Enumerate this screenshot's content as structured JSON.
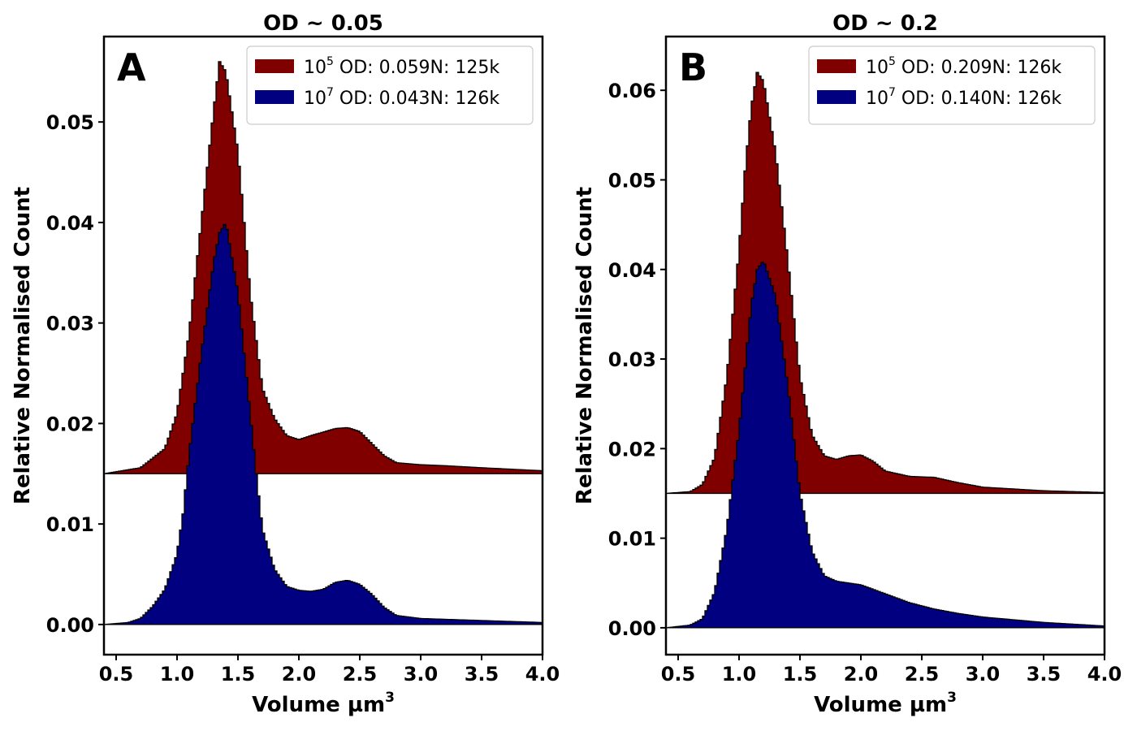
{
  "chart_data": [
    {
      "type": "histogram",
      "panel": "A",
      "title": "OD ~ 0.05",
      "xlabel": "Volume µm",
      "xlabel_sup": "3",
      "ylabel": "Relative Normalised Count",
      "xlim": [
        0.4,
        4.0
      ],
      "ylim": [
        -0.003,
        0.0585
      ],
      "xticks": [
        0.5,
        1.0,
        1.5,
        2.0,
        2.5,
        3.0,
        3.5,
        4.0
      ],
      "xtick_labels": [
        "0.5",
        "1.0",
        "1.5",
        "2.0",
        "2.5",
        "3.0",
        "3.5",
        "4.0"
      ],
      "yticks": [
        0.0,
        0.01,
        0.02,
        0.03,
        0.04,
        0.05
      ],
      "ytick_labels": [
        "0.00",
        "0.01",
        "0.02",
        "0.03",
        "0.04",
        "0.05"
      ],
      "legend_position": "top-right",
      "series": [
        {
          "name_base": "10",
          "name_sup": "5",
          "name_rest": " OD: 0.059N: 125k",
          "color": "#800000",
          "offset": 0.015,
          "profile": [
            [
              0.4,
              0.0
            ],
            [
              0.7,
              0.0006
            ],
            [
              0.9,
              0.0025
            ],
            [
              1.0,
              0.006
            ],
            [
              1.1,
              0.014
            ],
            [
              1.2,
              0.025
            ],
            [
              1.3,
              0.036
            ],
            [
              1.35,
              0.041
            ],
            [
              1.4,
              0.04
            ],
            [
              1.5,
              0.032
            ],
            [
              1.6,
              0.018
            ],
            [
              1.7,
              0.0085
            ],
            [
              1.8,
              0.0055
            ],
            [
              1.9,
              0.0038
            ],
            [
              2.0,
              0.0034
            ],
            [
              2.1,
              0.0038
            ],
            [
              2.3,
              0.0045
            ],
            [
              2.4,
              0.0046
            ],
            [
              2.5,
              0.0042
            ],
            [
              2.6,
              0.003
            ],
            [
              2.7,
              0.0018
            ],
            [
              2.8,
              0.0011
            ],
            [
              3.0,
              0.0009
            ],
            [
              3.2,
              0.0008
            ],
            [
              3.5,
              0.0006
            ],
            [
              4.0,
              0.0003
            ]
          ]
        },
        {
          "name_base": "10",
          "name_sup": "7",
          "name_rest": " OD: 0.043N: 126k",
          "color": "#000080",
          "offset": 0.0,
          "profile": [
            [
              0.4,
              0.0
            ],
            [
              0.6,
              0.0002
            ],
            [
              0.7,
              0.0006
            ],
            [
              0.8,
              0.0018
            ],
            [
              0.9,
              0.0035
            ],
            [
              1.0,
              0.007
            ],
            [
              1.05,
              0.011
            ],
            [
              1.1,
              0.017
            ],
            [
              1.2,
              0.027
            ],
            [
              1.3,
              0.036
            ],
            [
              1.35,
              0.039
            ],
            [
              1.4,
              0.04
            ],
            [
              1.5,
              0.033
            ],
            [
              1.6,
              0.021
            ],
            [
              1.65,
              0.015
            ],
            [
              1.7,
              0.0095
            ],
            [
              1.8,
              0.0055
            ],
            [
              1.9,
              0.0038
            ],
            [
              2.0,
              0.0034
            ],
            [
              2.1,
              0.0033
            ],
            [
              2.2,
              0.0035
            ],
            [
              2.3,
              0.0042
            ],
            [
              2.4,
              0.0044
            ],
            [
              2.5,
              0.004
            ],
            [
              2.6,
              0.003
            ],
            [
              2.7,
              0.0017
            ],
            [
              2.8,
              0.0009
            ],
            [
              3.0,
              0.0006
            ],
            [
              3.5,
              0.0004
            ],
            [
              4.0,
              0.0002
            ]
          ]
        }
      ]
    },
    {
      "type": "histogram",
      "panel": "B",
      "title": "OD ~ 0.2",
      "xlabel": "Volume µm",
      "xlabel_sup": "3",
      "ylabel": "Relative Normalised Count",
      "xlim": [
        0.4,
        4.0
      ],
      "ylim": [
        -0.003,
        0.066
      ],
      "xticks": [
        0.5,
        1.0,
        1.5,
        2.0,
        2.5,
        3.0,
        3.5,
        4.0
      ],
      "xtick_labels": [
        "0.5",
        "1.0",
        "1.5",
        "2.0",
        "2.5",
        "3.0",
        "3.5",
        "4.0"
      ],
      "yticks": [
        0.0,
        0.01,
        0.02,
        0.03,
        0.04,
        0.05,
        0.06
      ],
      "ytick_labels": [
        "0.00",
        "0.01",
        "0.02",
        "0.03",
        "0.04",
        "0.05",
        "0.06"
      ],
      "legend_position": "top-right",
      "series": [
        {
          "name_base": "10",
          "name_sup": "5",
          "name_rest": " OD: 0.209N: 126k",
          "color": "#800000",
          "offset": 0.015,
          "profile": [
            [
              0.4,
              0.0
            ],
            [
              0.6,
              0.0002
            ],
            [
              0.7,
              0.001
            ],
            [
              0.8,
              0.004
            ],
            [
              0.9,
              0.013
            ],
            [
              1.0,
              0.027
            ],
            [
              1.05,
              0.036
            ],
            [
              1.1,
              0.043
            ],
            [
              1.15,
              0.047
            ],
            [
              1.2,
              0.046
            ],
            [
              1.3,
              0.038
            ],
            [
              1.4,
              0.026
            ],
            [
              1.5,
              0.013
            ],
            [
              1.6,
              0.0065
            ],
            [
              1.7,
              0.0042
            ],
            [
              1.8,
              0.0038
            ],
            [
              1.9,
              0.0042
            ],
            [
              2.0,
              0.0043
            ],
            [
              2.1,
              0.0036
            ],
            [
              2.2,
              0.0025
            ],
            [
              2.4,
              0.0019
            ],
            [
              2.6,
              0.0018
            ],
            [
              2.8,
              0.0012
            ],
            [
              3.0,
              0.0007
            ],
            [
              3.5,
              0.0003
            ],
            [
              4.0,
              0.0001
            ]
          ]
        },
        {
          "name_base": "10",
          "name_sup": "7",
          "name_rest": " OD: 0.140N: 126k",
          "color": "#000080",
          "offset": 0.0,
          "profile": [
            [
              0.4,
              0.0
            ],
            [
              0.6,
              0.0003
            ],
            [
              0.7,
              0.001
            ],
            [
              0.8,
              0.004
            ],
            [
              0.9,
              0.011
            ],
            [
              1.0,
              0.022
            ],
            [
              1.1,
              0.036
            ],
            [
              1.15,
              0.04
            ],
            [
              1.2,
              0.041
            ],
            [
              1.3,
              0.037
            ],
            [
              1.4,
              0.027
            ],
            [
              1.5,
              0.015
            ],
            [
              1.6,
              0.0085
            ],
            [
              1.7,
              0.0058
            ],
            [
              1.8,
              0.0052
            ],
            [
              2.0,
              0.0048
            ],
            [
              2.2,
              0.0038
            ],
            [
              2.4,
              0.0028
            ],
            [
              2.6,
              0.0021
            ],
            [
              2.8,
              0.0016
            ],
            [
              3.0,
              0.0012
            ],
            [
              3.5,
              0.0006
            ],
            [
              4.0,
              0.0002
            ]
          ]
        }
      ]
    }
  ]
}
